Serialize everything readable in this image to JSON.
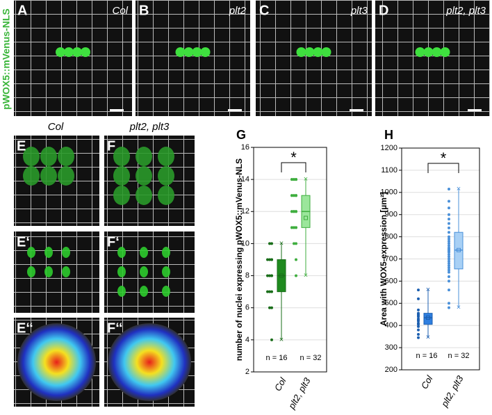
{
  "side_label": "pWOX5::mVenus-NLS",
  "panels": [
    {
      "letter": "A",
      "caption": "Col"
    },
    {
      "letter": "B",
      "caption": "plt2"
    },
    {
      "letter": "C",
      "caption": "plt3"
    },
    {
      "letter": "D",
      "caption": "plt2, plt3"
    }
  ],
  "column_headers": [
    "Col",
    "plt2, plt3"
  ],
  "small_panels": [
    "E",
    "F",
    "E‘",
    "F‘",
    "E‘‘",
    "F‘‘"
  ],
  "chart_data": [
    {
      "type": "box",
      "letter": "G",
      "ylabel": "number of nuclei expressing pWOX5::mVenus-NLS",
      "categories": [
        "Col",
        "plt2, plt3"
      ],
      "colors": [
        "#1f8a1f",
        "#9be69b"
      ],
      "edge_colors": [
        "#1a6e1a",
        "#3fae3f"
      ],
      "ylim": [
        2,
        16
      ],
      "yticks": [
        2,
        4,
        6,
        8,
        10,
        12,
        14,
        16
      ],
      "grid": true,
      "boxes": [
        {
          "min": 4,
          "q1": 7,
          "median": 8,
          "q3": 9,
          "max": 10,
          "mean": 8
        },
        {
          "min": 8,
          "q1": 11,
          "median": 12,
          "q3": 13,
          "max": 14,
          "mean": 11.6
        }
      ],
      "points": [
        [
          4,
          6,
          6,
          7,
          7,
          7,
          8,
          8,
          8,
          8,
          9,
          9,
          9,
          9,
          10,
          10
        ],
        [
          8,
          9,
          10,
          10,
          11,
          11,
          11,
          11,
          11,
          11,
          12,
          12,
          12,
          12,
          12,
          12,
          12,
          12,
          13,
          13,
          13,
          13,
          13,
          13,
          13,
          14,
          14,
          14,
          14,
          14,
          14,
          14
        ]
      ],
      "n_labels": [
        "n = 16",
        "n = 32"
      ],
      "significance": "*"
    },
    {
      "type": "box",
      "letter": "H",
      "ylabel": "Area with WOX5-expression [µm²]",
      "categories": [
        "Col",
        "plt2, plt3"
      ],
      "colors": [
        "#2f7fe0",
        "#a8d0f5"
      ],
      "edge_colors": [
        "#1c5fb0",
        "#4a90d9"
      ],
      "ylim": [
        200,
        1200
      ],
      "yticks": [
        200,
        300,
        400,
        500,
        600,
        700,
        800,
        900,
        1000,
        1100,
        1200
      ],
      "grid": true,
      "boxes": [
        {
          "min": 345,
          "q1": 405,
          "median": 435,
          "q3": 455,
          "max": 560,
          "mean": 435
        },
        {
          "min": 480,
          "q1": 655,
          "median": 740,
          "q3": 820,
          "max": 1015,
          "mean": 740
        }
      ],
      "points": [
        [
          345,
          360,
          380,
          395,
          405,
          410,
          420,
          425,
          430,
          440,
          445,
          450,
          455,
          470,
          520,
          560
        ],
        [
          480,
          500,
          560,
          600,
          620,
          640,
          650,
          660,
          670,
          680,
          690,
          700,
          710,
          720,
          730,
          735,
          740,
          745,
          750,
          760,
          770,
          780,
          790,
          800,
          820,
          840,
          860,
          880,
          900,
          930,
          960,
          1015
        ]
      ],
      "n_labels": [
        "n = 16",
        "n = 32"
      ],
      "significance": "*"
    }
  ]
}
